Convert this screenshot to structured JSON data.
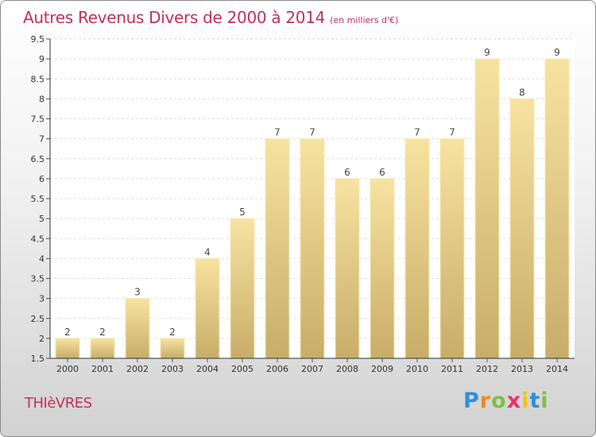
{
  "header": {
    "title": "Autres Revenus Divers de 2000 à 2014",
    "subtitle": "(en milliers d'€)"
  },
  "footer": {
    "commune": "THIèVRES",
    "logo_letters": [
      "P",
      "r",
      "o",
      "x",
      "i",
      "t",
      "i"
    ],
    "logo_colors": [
      "#2f8fd8",
      "#f08a1c",
      "#7cc242",
      "#e8336d",
      "#f3c21a",
      "#2f8fd8",
      "#7cc242"
    ]
  },
  "chart_data": {
    "type": "bar",
    "categories": [
      "2000",
      "2001",
      "2002",
      "2003",
      "2004",
      "2005",
      "2006",
      "2007",
      "2008",
      "2009",
      "2010",
      "2011",
      "2012",
      "2013",
      "2014"
    ],
    "values": [
      2,
      2,
      3,
      2,
      4,
      5,
      7,
      7,
      6,
      6,
      7,
      7,
      9,
      8,
      9
    ],
    "data_labels": [
      "2",
      "2",
      "3",
      "2",
      "4",
      "5",
      "7",
      "7",
      "6",
      "6",
      "7",
      "7",
      "9",
      "8",
      "9"
    ],
    "title": "Autres Revenus Divers de 2000 à 2014",
    "xlabel": "",
    "ylabel": "",
    "ylim": [
      1.5,
      9.5
    ],
    "yticks": [
      "1.5",
      "2",
      "2.5",
      "3",
      "3.5",
      "4",
      "4.5",
      "5",
      "5.5",
      "6",
      "6.5",
      "7",
      "7.5",
      "8",
      "8.5",
      "9",
      "9.5"
    ],
    "grid": true,
    "bar_color": "#f0d68e"
  }
}
